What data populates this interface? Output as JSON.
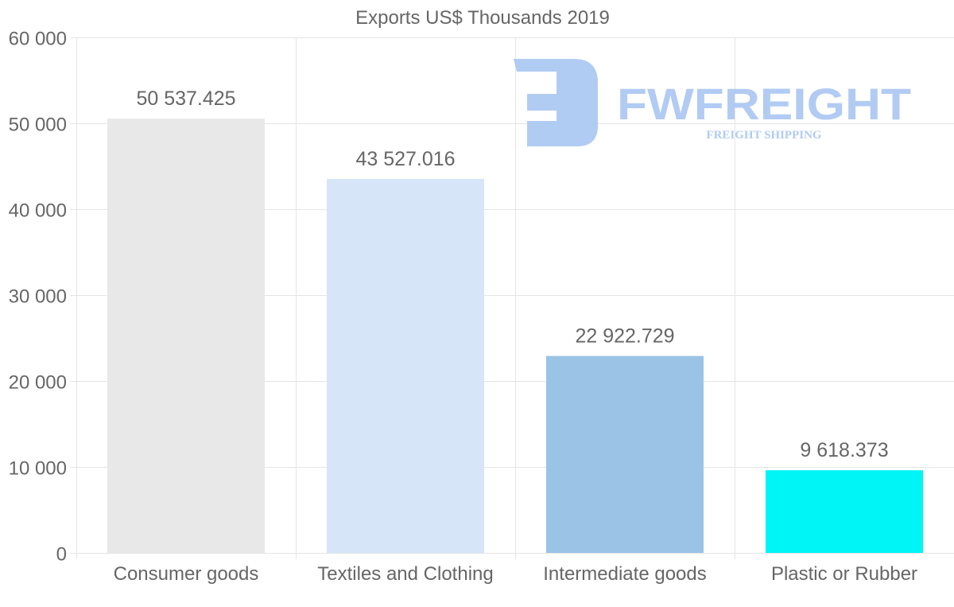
{
  "chart_data": {
    "type": "bar",
    "title": "Exports US$ Thousands 2019",
    "xlabel": "",
    "ylabel": "",
    "categories": [
      "Consumer goods",
      "Textiles and Clothing",
      "Intermediate goods",
      "Plastic or Rubber"
    ],
    "values": [
      50537.425,
      43527.016,
      22922.729,
      9618.373
    ],
    "value_labels": [
      "50 537.425",
      "43 527.016",
      "22 922.729",
      "9 618.373"
    ],
    "colors": [
      "#e8e8e8",
      "#d6e6f8",
      "#9bc3e6",
      "#00f5f7"
    ],
    "ylim": [
      0,
      60000
    ],
    "yticks": [
      0,
      10000,
      20000,
      30000,
      40000,
      50000,
      60000
    ],
    "ytick_labels": [
      "0",
      "10 000",
      "20 000",
      "30 000",
      "40 000",
      "50 000",
      "60 000"
    ],
    "grid": true,
    "legend": "none"
  },
  "watermark": {
    "name": "FWFREIGHT",
    "tagline": "FREIGHT SHIPPING",
    "color": "#a9c6f2"
  }
}
